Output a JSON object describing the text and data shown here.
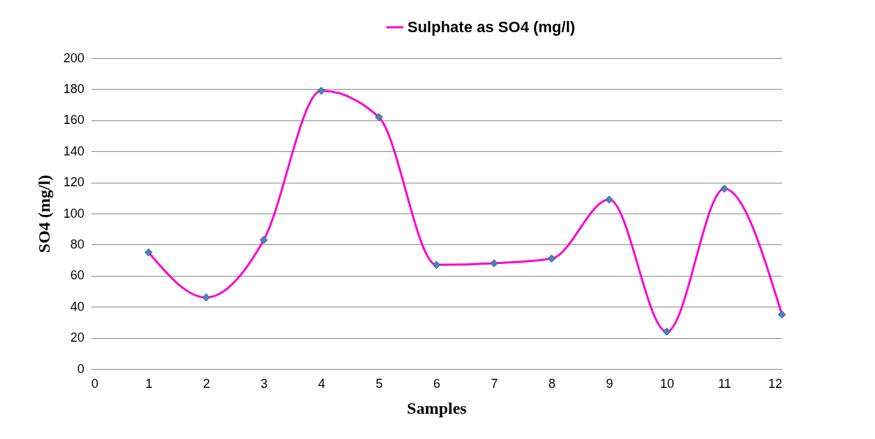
{
  "chart_data": {
    "type": "line",
    "xlabel": "Samples",
    "ylabel": "SO4 (mg/l)",
    "x": [
      1,
      2,
      3,
      4,
      5,
      6,
      7,
      8,
      9,
      10,
      11,
      12
    ],
    "series": [
      {
        "name": "Sulphate as SO4 (mg/l)",
        "color": "#ff00cc",
        "values": [
          75,
          46,
          83,
          179,
          162,
          67,
          68,
          71,
          109,
          24,
          116,
          35
        ]
      }
    ],
    "xlim": [
      0,
      12
    ],
    "xticks": [
      0,
      1,
      2,
      3,
      4,
      5,
      6,
      7,
      8,
      9,
      10,
      11,
      12
    ],
    "ylim": [
      0,
      200
    ],
    "yticks": [
      0,
      20,
      40,
      60,
      80,
      100,
      120,
      140,
      160,
      180,
      200
    ],
    "grid": "y",
    "legend": "top",
    "marker": "diamond",
    "line_style": "solid"
  }
}
